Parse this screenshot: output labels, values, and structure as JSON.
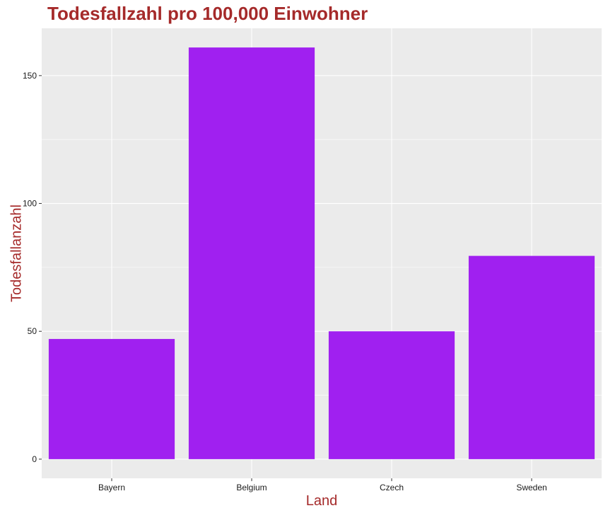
{
  "chart_data": {
    "type": "bar",
    "title": "Todesfallzahl pro 100,000 Einwohner",
    "xlabel": "Land",
    "ylabel": "Todesfallanzahl",
    "categories": [
      "Bayern",
      "Belgium",
      "Czech",
      "Sweden"
    ],
    "values": [
      47,
      161,
      50,
      79.5
    ],
    "ylim": [
      -7.5,
      168.5
    ],
    "yticks": [
      0,
      50,
      100,
      150
    ],
    "grid": true,
    "legend": "none",
    "colors": {
      "bar": "#A020F0",
      "panel": "#EBEBEB",
      "grid": "#FFFFFF",
      "title": "#A52A2A",
      "axis_title": "#A52A2A",
      "tick_mark": "#333333"
    }
  }
}
